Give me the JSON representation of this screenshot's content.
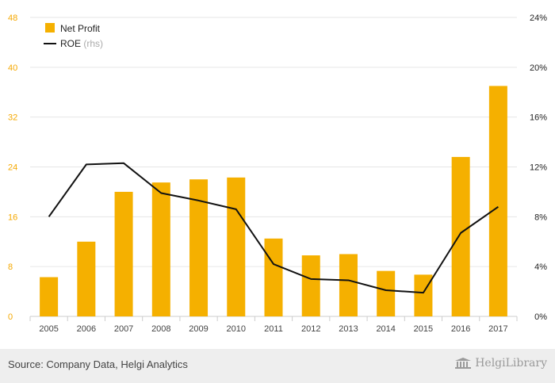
{
  "chart_data": {
    "type": "bar+line",
    "categories": [
      "2005",
      "2006",
      "2007",
      "2008",
      "2009",
      "2010",
      "2011",
      "2012",
      "2013",
      "2014",
      "2015",
      "2016",
      "2017"
    ],
    "series": [
      {
        "name": "Net Profit",
        "type": "bar",
        "axis": "left",
        "color": "#f5b000",
        "values": [
          6.3,
          12.0,
          20.0,
          21.5,
          22.0,
          22.3,
          12.5,
          9.8,
          10.0,
          7.3,
          6.7,
          25.6,
          37.0
        ]
      },
      {
        "name": "ROE",
        "name_suffix": "(rhs)",
        "type": "line",
        "axis": "right",
        "color": "#111111",
        "values": [
          8.0,
          12.2,
          12.3,
          9.9,
          9.3,
          8.6,
          4.2,
          3.0,
          2.9,
          2.1,
          1.9,
          6.7,
          8.8
        ]
      }
    ],
    "y_left": {
      "min": 0,
      "max": 48,
      "ticks": [
        "0",
        "8",
        "16",
        "24",
        "32",
        "40",
        "48"
      ]
    },
    "y_right": {
      "min": 0,
      "max": 24,
      "ticks": [
        "0%",
        "4%",
        "8%",
        "12%",
        "16%",
        "20%",
        "24%"
      ]
    },
    "grid": true,
    "legend": "top-left"
  },
  "footer": {
    "source": "Source: Company Data, Helgi Analytics",
    "brand": "HelgiLibrary"
  },
  "colors": {
    "bar": "#f5b000",
    "line": "#111111",
    "grid": "#e6e6e6"
  }
}
